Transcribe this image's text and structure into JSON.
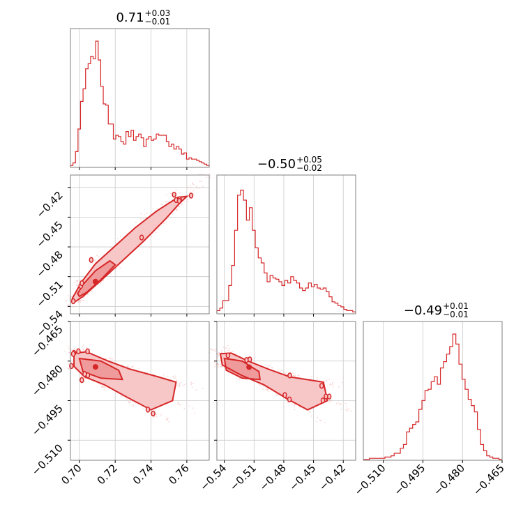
{
  "chart_data": {
    "type": "corner",
    "color": "#d62728",
    "parameters": [
      {
        "median": "0.71",
        "plus": "+0.03",
        "minus": "−0.01",
        "range": [
          0.695,
          0.7725
        ],
        "ticks": [
          0.7,
          0.72,
          0.74,
          0.76
        ],
        "tick_labels": [
          "0.70",
          "0.72",
          "0.74",
          "0.76"
        ]
      },
      {
        "median": "−0.50",
        "plus": "+0.05",
        "minus": "−0.02",
        "range": [
          -0.5475,
          -0.4075
        ],
        "ticks": [
          -0.54,
          -0.51,
          -0.48,
          -0.45,
          -0.42
        ],
        "tick_labels": [
          "−0.54",
          "−0.51",
          "−0.48",
          "−0.45",
          "−0.42"
        ]
      },
      {
        "median": "−0.49",
        "plus": "+0.01",
        "minus": "−0.01",
        "range": [
          -0.5176,
          -0.465
        ],
        "ticks": [
          -0.51,
          -0.495,
          -0.48,
          -0.465
        ],
        "tick_labels": [
          "−0.510",
          "−0.495",
          "−0.480",
          "−0.465"
        ]
      }
    ],
    "histograms": [
      [
        0.01,
        0.03,
        0.12,
        0.3,
        0.52,
        0.62,
        0.78,
        0.82,
        0.88,
        0.86,
        1.0,
        0.85,
        0.64,
        0.5,
        0.49,
        0.34,
        0.34,
        0.22,
        0.25,
        0.24,
        0.2,
        0.18,
        0.28,
        0.24,
        0.29,
        0.21,
        0.24,
        0.26,
        0.23,
        0.16,
        0.22,
        0.24,
        0.21,
        0.22,
        0.26,
        0.25,
        0.25,
        0.25,
        0.2,
        0.16,
        0.18,
        0.14,
        0.16,
        0.14,
        0.1,
        0.11,
        0.06,
        0.07,
        0.06,
        0.06,
        0.05,
        0.04,
        0.03,
        0.02,
        0.01
      ],
      [
        0.02,
        0.04,
        0.1,
        0.1,
        0.22,
        0.38,
        0.66,
        0.94,
        0.98,
        0.9,
        0.74,
        0.84,
        0.66,
        0.52,
        0.44,
        0.4,
        0.32,
        0.25,
        0.3,
        0.28,
        0.27,
        0.25,
        0.22,
        0.26,
        0.24,
        0.29,
        0.26,
        0.24,
        0.2,
        0.18,
        0.2,
        0.24,
        0.21,
        0.23,
        0.2,
        0.19,
        0.2,
        0.17,
        0.13,
        0.09,
        0.08,
        0.06,
        0.05,
        0.03,
        0.02,
        0.02,
        0.01
      ],
      [
        0.0,
        0.0,
        0.01,
        0.01,
        0.01,
        0.01,
        0.01,
        0.02,
        0.02,
        0.03,
        0.05,
        0.05,
        0.09,
        0.12,
        0.22,
        0.25,
        0.28,
        0.3,
        0.4,
        0.47,
        0.55,
        0.56,
        0.62,
        0.66,
        0.6,
        0.73,
        0.78,
        0.84,
        0.9,
        1.0,
        0.92,
        0.76,
        0.64,
        0.56,
        0.48,
        0.43,
        0.38,
        0.24,
        0.12,
        0.07,
        0.03,
        0.02,
        0.01,
        0.01,
        0.0
      ]
    ],
    "joint_2d": [
      {
        "x_param": 0,
        "y_param": 1,
        "center": [
          0.709,
          -0.515
        ],
        "outer": [
          [
            0.697,
            -0.536
          ],
          [
            0.702,
            -0.53
          ],
          [
            0.712,
            -0.514
          ],
          [
            0.724,
            -0.494
          ],
          [
            0.736,
            -0.474
          ],
          [
            0.748,
            -0.452
          ],
          [
            0.756,
            -0.436
          ],
          [
            0.76,
            -0.429
          ],
          [
            0.755,
            -0.43
          ],
          [
            0.743,
            -0.444
          ],
          [
            0.731,
            -0.461
          ],
          [
            0.72,
            -0.479
          ],
          [
            0.709,
            -0.497
          ],
          [
            0.701,
            -0.516
          ],
          [
            0.696,
            -0.532
          ]
        ],
        "inner": [
          [
            0.7,
            -0.53
          ],
          [
            0.704,
            -0.526
          ],
          [
            0.712,
            -0.513
          ],
          [
            0.72,
            -0.498
          ],
          [
            0.717,
            -0.494
          ],
          [
            0.709,
            -0.504
          ],
          [
            0.702,
            -0.518
          ],
          [
            0.699,
            -0.527
          ]
        ]
      },
      {
        "x_param": 0,
        "y_param": 2,
        "center": [
          0.709,
          -0.4822
        ],
        "outer": [
          [
            0.697,
            -0.477
          ],
          [
            0.704,
            -0.4765
          ],
          [
            0.716,
            -0.48
          ],
          [
            0.728,
            -0.483
          ],
          [
            0.744,
            -0.486
          ],
          [
            0.754,
            -0.488
          ],
          [
            0.752,
            -0.495
          ],
          [
            0.74,
            -0.4985
          ],
          [
            0.726,
            -0.4935
          ],
          [
            0.714,
            -0.489
          ],
          [
            0.703,
            -0.486
          ],
          [
            0.697,
            -0.482
          ]
        ],
        "inner": [
          [
            0.7,
            -0.479
          ],
          [
            0.712,
            -0.48
          ],
          [
            0.722,
            -0.4835
          ],
          [
            0.724,
            -0.487
          ],
          [
            0.712,
            -0.4865
          ],
          [
            0.702,
            -0.484
          ]
        ]
      },
      {
        "x_param": 1,
        "y_param": 2,
        "center": [
          -0.515,
          -0.4823
        ],
        "outer": [
          [
            -0.544,
            -0.4772
          ],
          [
            -0.533,
            -0.477
          ],
          [
            -0.516,
            -0.48
          ],
          [
            -0.496,
            -0.483
          ],
          [
            -0.474,
            -0.486
          ],
          [
            -0.44,
            -0.488
          ],
          [
            -0.436,
            -0.495
          ],
          [
            -0.456,
            -0.4985
          ],
          [
            -0.478,
            -0.494
          ],
          [
            -0.5,
            -0.489
          ],
          [
            -0.522,
            -0.4855
          ],
          [
            -0.542,
            -0.4815
          ]
        ],
        "inner": [
          [
            -0.54,
            -0.479
          ],
          [
            -0.522,
            -0.48
          ],
          [
            -0.505,
            -0.484
          ],
          [
            -0.504,
            -0.487
          ],
          [
            -0.522,
            -0.4865
          ],
          [
            -0.538,
            -0.4835
          ]
        ]
      }
    ],
    "grid": true
  }
}
